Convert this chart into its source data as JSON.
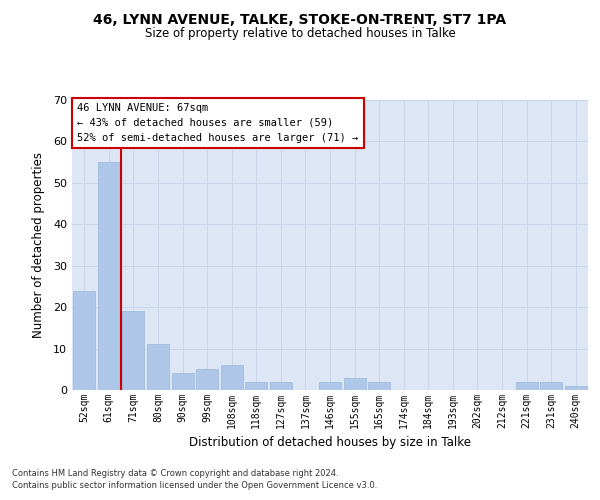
{
  "title1": "46, LYNN AVENUE, TALKE, STOKE-ON-TRENT, ST7 1PA",
  "title2": "Size of property relative to detached houses in Talke",
  "xlabel": "Distribution of detached houses by size in Talke",
  "ylabel": "Number of detached properties",
  "categories": [
    "52sqm",
    "61sqm",
    "71sqm",
    "80sqm",
    "90sqm",
    "99sqm",
    "108sqm",
    "118sqm",
    "127sqm",
    "137sqm",
    "146sqm",
    "155sqm",
    "165sqm",
    "174sqm",
    "184sqm",
    "193sqm",
    "202sqm",
    "212sqm",
    "221sqm",
    "231sqm",
    "240sqm"
  ],
  "values": [
    24,
    55,
    19,
    11,
    4,
    5,
    6,
    2,
    2,
    0,
    2,
    3,
    2,
    0,
    0,
    0,
    0,
    0,
    2,
    2,
    1
  ],
  "bar_color": "#aec6e8",
  "bar_edge_color": "#9ab8d8",
  "grid_color": "#c8d4e8",
  "background_color": "#dce6f5",
  "vline_color": "#cc0000",
  "annotation_lines": [
    "46 LYNN AVENUE: 67sqm",
    "← 43% of detached houses are smaller (59)",
    "52% of semi-detached houses are larger (71) →"
  ],
  "annotation_box_color": "#cc0000",
  "ylim": [
    0,
    70
  ],
  "yticks": [
    0,
    10,
    20,
    30,
    40,
    50,
    60,
    70
  ],
  "footer1": "Contains HM Land Registry data © Crown copyright and database right 2024.",
  "footer2": "Contains public sector information licensed under the Open Government Licence v3.0."
}
